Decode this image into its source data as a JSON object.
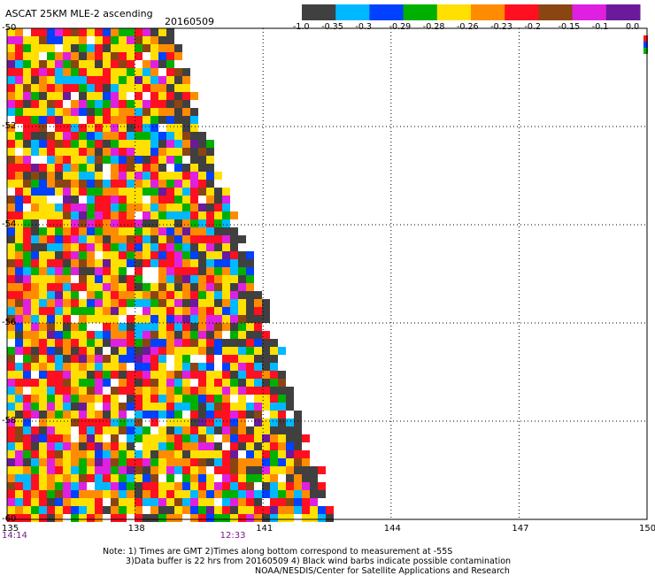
{
  "header": {
    "title": "ASCAT 25KM MLE-2 ascending",
    "date": "20160509"
  },
  "colorbar": {
    "segments": [
      {
        "label_end": "-0.35",
        "color": "#404040"
      },
      {
        "label_end": "-0.3",
        "color": "#00b8ff"
      },
      {
        "label_end": "-0.29",
        "color": "#0040ff"
      },
      {
        "label_end": "-0.28",
        "color": "#00b000"
      },
      {
        "label_end": "-0.26",
        "color": "#ffe000"
      },
      {
        "label_end": "-0.23",
        "color": "#ff8c00"
      },
      {
        "label_end": "-0.2",
        "color": "#ff1020"
      },
      {
        "label_end": "-0.15",
        "color": "#8b4513"
      },
      {
        "label_end": "-0.1",
        "color": "#e020e0"
      },
      {
        "label_end": "0.0",
        "color": "#6a1a9a"
      }
    ],
    "label_start": "-1.0"
  },
  "axes": {
    "y_ticks": [
      "-50",
      "-52",
      "-54",
      "-56",
      "-58",
      "-60"
    ],
    "x_ticks": [
      "135",
      "138",
      "141",
      "144",
      "147",
      "150"
    ],
    "x_range": [
      135,
      150
    ],
    "y_range": [
      -60,
      -50
    ],
    "time_labels": [
      {
        "text": "14:14",
        "lon": 135
      },
      {
        "text": "12:33",
        "lon": 140.2
      }
    ]
  },
  "notes": {
    "line1": "Note: 1) Times are GMT 2)Times along bottom correspond to measurement at -55S",
    "line2": "3)Data buffer is 22 hrs from 20160509 4) Black wind barbs indicate possible contamination",
    "line3": "NOAA/NESDIS/Center for Satellite Applications and Research"
  }
}
